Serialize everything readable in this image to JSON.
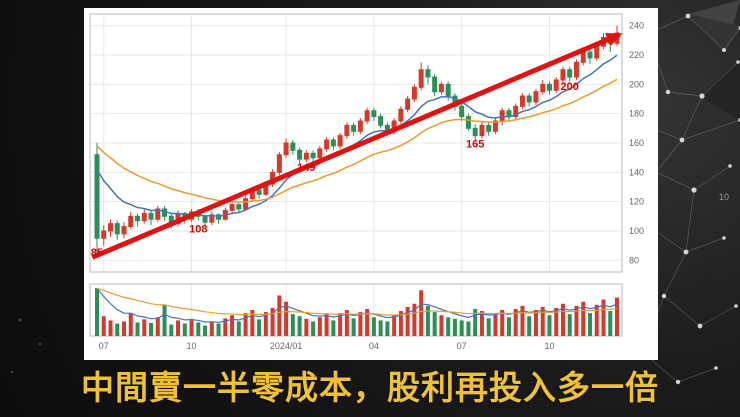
{
  "slide": {
    "caption": "中間賣一半零成本，股利再投入多一倍",
    "caption_color": "#f0c132",
    "page_number": "10"
  },
  "chart_data": {
    "type": "candlestick_with_volume",
    "title": "",
    "xlabel": "",
    "ylabel": "",
    "ylim": [
      80,
      240
    ],
    "y_ticks": [
      80,
      100,
      120,
      140,
      160,
      180,
      200,
      220,
      240
    ],
    "x_labels": [
      {
        "label": "07",
        "index": 1
      },
      {
        "label": "10",
        "index": 14
      },
      {
        "label": "2024/01",
        "index": 28
      },
      {
        "label": "04",
        "index": 41
      },
      {
        "label": "07",
        "index": 54
      },
      {
        "label": "10",
        "index": 67
      }
    ],
    "candles": [
      [
        152,
        160,
        85,
        95
      ],
      [
        95,
        104,
        90,
        100
      ],
      [
        100,
        108,
        96,
        105
      ],
      [
        105,
        107,
        94,
        98
      ],
      [
        98,
        106,
        95,
        103
      ],
      [
        103,
        113,
        101,
        110
      ],
      [
        110,
        112,
        103,
        107
      ],
      [
        107,
        115,
        105,
        112
      ],
      [
        112,
        114,
        104,
        108
      ],
      [
        108,
        117,
        106,
        115
      ],
      [
        115,
        117,
        107,
        110
      ],
      [
        110,
        112,
        102,
        105
      ],
      [
        105,
        114,
        103,
        112
      ],
      [
        112,
        113,
        105,
        108
      ],
      [
        108,
        115,
        106,
        113
      ],
      [
        113,
        115,
        107,
        110
      ],
      [
        110,
        111,
        103,
        106
      ],
      [
        106,
        113,
        104,
        111
      ],
      [
        111,
        112,
        105,
        108
      ],
      [
        108,
        116,
        107,
        114
      ],
      [
        114,
        120,
        112,
        118
      ],
      [
        118,
        120,
        112,
        115
      ],
      [
        115,
        124,
        114,
        122
      ],
      [
        122,
        130,
        120,
        128
      ],
      [
        128,
        130,
        122,
        125
      ],
      [
        125,
        134,
        124,
        132
      ],
      [
        132,
        142,
        130,
        140
      ],
      [
        140,
        154,
        138,
        152
      ],
      [
        152,
        163,
        150,
        160
      ],
      [
        160,
        162,
        152,
        155
      ],
      [
        155,
        157,
        146,
        149
      ],
      [
        149,
        155,
        147,
        153
      ],
      [
        153,
        155,
        147,
        150
      ],
      [
        150,
        158,
        148,
        156
      ],
      [
        156,
        164,
        154,
        162
      ],
      [
        162,
        164,
        155,
        158
      ],
      [
        158,
        167,
        156,
        165
      ],
      [
        165,
        174,
        163,
        172
      ],
      [
        172,
        174,
        165,
        168
      ],
      [
        168,
        177,
        166,
        175
      ],
      [
        175,
        184,
        173,
        182
      ],
      [
        182,
        184,
        175,
        178
      ],
      [
        178,
        180,
        170,
        172
      ],
      [
        172,
        174,
        165,
        168
      ],
      [
        168,
        177,
        166,
        175
      ],
      [
        175,
        185,
        173,
        183
      ],
      [
        183,
        192,
        181,
        190
      ],
      [
        190,
        200,
        188,
        198
      ],
      [
        198,
        215,
        196,
        210
      ],
      [
        210,
        213,
        200,
        205
      ],
      [
        205,
        207,
        192,
        195
      ],
      [
        195,
        202,
        193,
        200
      ],
      [
        200,
        202,
        189,
        192
      ],
      [
        192,
        194,
        182,
        185
      ],
      [
        185,
        187,
        175,
        178
      ],
      [
        178,
        180,
        168,
        170
      ],
      [
        170,
        173,
        162,
        165
      ],
      [
        165,
        174,
        163,
        172
      ],
      [
        172,
        174,
        165,
        168
      ],
      [
        168,
        177,
        166,
        175
      ],
      [
        175,
        184,
        172,
        182
      ],
      [
        182,
        184,
        175,
        178
      ],
      [
        178,
        187,
        176,
        185
      ],
      [
        185,
        194,
        183,
        192
      ],
      [
        192,
        194,
        185,
        188
      ],
      [
        188,
        197,
        186,
        195
      ],
      [
        195,
        203,
        193,
        200
      ],
      [
        200,
        202,
        193,
        196
      ],
      [
        196,
        205,
        194,
        203
      ],
      [
        203,
        212,
        201,
        210
      ],
      [
        210,
        212,
        202,
        205
      ],
      [
        205,
        217,
        203,
        215
      ],
      [
        215,
        224,
        213,
        222
      ],
      [
        222,
        224,
        214,
        218
      ],
      [
        218,
        228,
        216,
        226
      ],
      [
        226,
        235,
        224,
        232
      ],
      [
        232,
        234,
        222,
        228
      ],
      [
        228,
        240,
        226,
        235
      ]
    ],
    "volumes": [
      92,
      38,
      30,
      24,
      28,
      44,
      26,
      32,
      25,
      36,
      60,
      22,
      30,
      24,
      33,
      26,
      20,
      28,
      24,
      34,
      40,
      28,
      44,
      50,
      32,
      46,
      54,
      78,
      66,
      42,
      38,
      33,
      28,
      36,
      42,
      30,
      44,
      50,
      34,
      46,
      52,
      36,
      30,
      28,
      40,
      48,
      56,
      62,
      88,
      58,
      46,
      40,
      36,
      33,
      30,
      28,
      52,
      48,
      34,
      44,
      50,
      36,
      52,
      58,
      38,
      50,
      56,
      40,
      54,
      62,
      42,
      58,
      66,
      44,
      60,
      70,
      48,
      74
    ],
    "annotations": [
      {
        "label": "85",
        "index": 0,
        "price": 83
      },
      {
        "label": "108",
        "index": 15,
        "price": 99
      },
      {
        "label": "149",
        "index": 31,
        "price": 141
      },
      {
        "label": "165",
        "index": 56,
        "price": 157
      },
      {
        "label": "200",
        "index": 70,
        "price": 196
      }
    ],
    "trend_arrow": {
      "from_index": -0.7,
      "from_price": 82,
      "to_index": 77.4,
      "to_price": 234,
      "color": "#e01212",
      "width": 5
    },
    "colors": {
      "up": "#d33a2c",
      "down": "#2c8f57",
      "grid": "#e7e7e7",
      "border": "#b9b9b9",
      "axis_text": "#666666",
      "annotation": "#e00000"
    },
    "ma": {
      "short": {
        "seed": 152,
        "k": 0.18,
        "color": "#4472c4"
      },
      "long": {
        "seed": 163,
        "k": 0.075,
        "color": "#ed9a2e"
      },
      "vol_short": {
        "k": 0.3,
        "color": "#4472c4"
      },
      "vol_long": {
        "k": 0.08,
        "color": "#ed9a2e"
      }
    }
  }
}
